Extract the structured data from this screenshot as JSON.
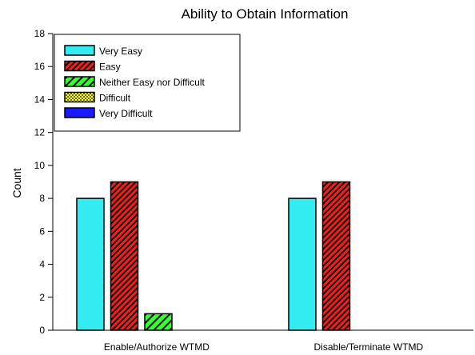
{
  "chart_data": {
    "type": "bar",
    "title": "Ability to Obtain Information",
    "xlabel": "",
    "ylabel": "Count",
    "ylim": [
      0,
      18
    ],
    "yticks": [
      0,
      2,
      4,
      6,
      8,
      10,
      12,
      14,
      16,
      18
    ],
    "categories": [
      "Enable/Authorize WTMD",
      "Disable/Terminate WTMD"
    ],
    "series": [
      {
        "name": "Very Easy",
        "values": [
          8,
          8
        ],
        "color": "#33ecf2",
        "pattern": "solid"
      },
      {
        "name": "Easy",
        "values": [
          9,
          9
        ],
        "color": "#ff1a1a",
        "pattern": "diagonal-dense"
      },
      {
        "name": "Neither Easy nor Difficult",
        "values": [
          1,
          0
        ],
        "color": "#33ff33",
        "pattern": "diagonal-sparse"
      },
      {
        "name": "Difficult",
        "values": [
          0,
          0
        ],
        "color": "#ffff33",
        "pattern": "dots"
      },
      {
        "name": "Very Difficult",
        "values": [
          0,
          0
        ],
        "color": "#1a1aff",
        "pattern": "solid"
      }
    ],
    "legend_position": "top-left",
    "grid": false
  }
}
